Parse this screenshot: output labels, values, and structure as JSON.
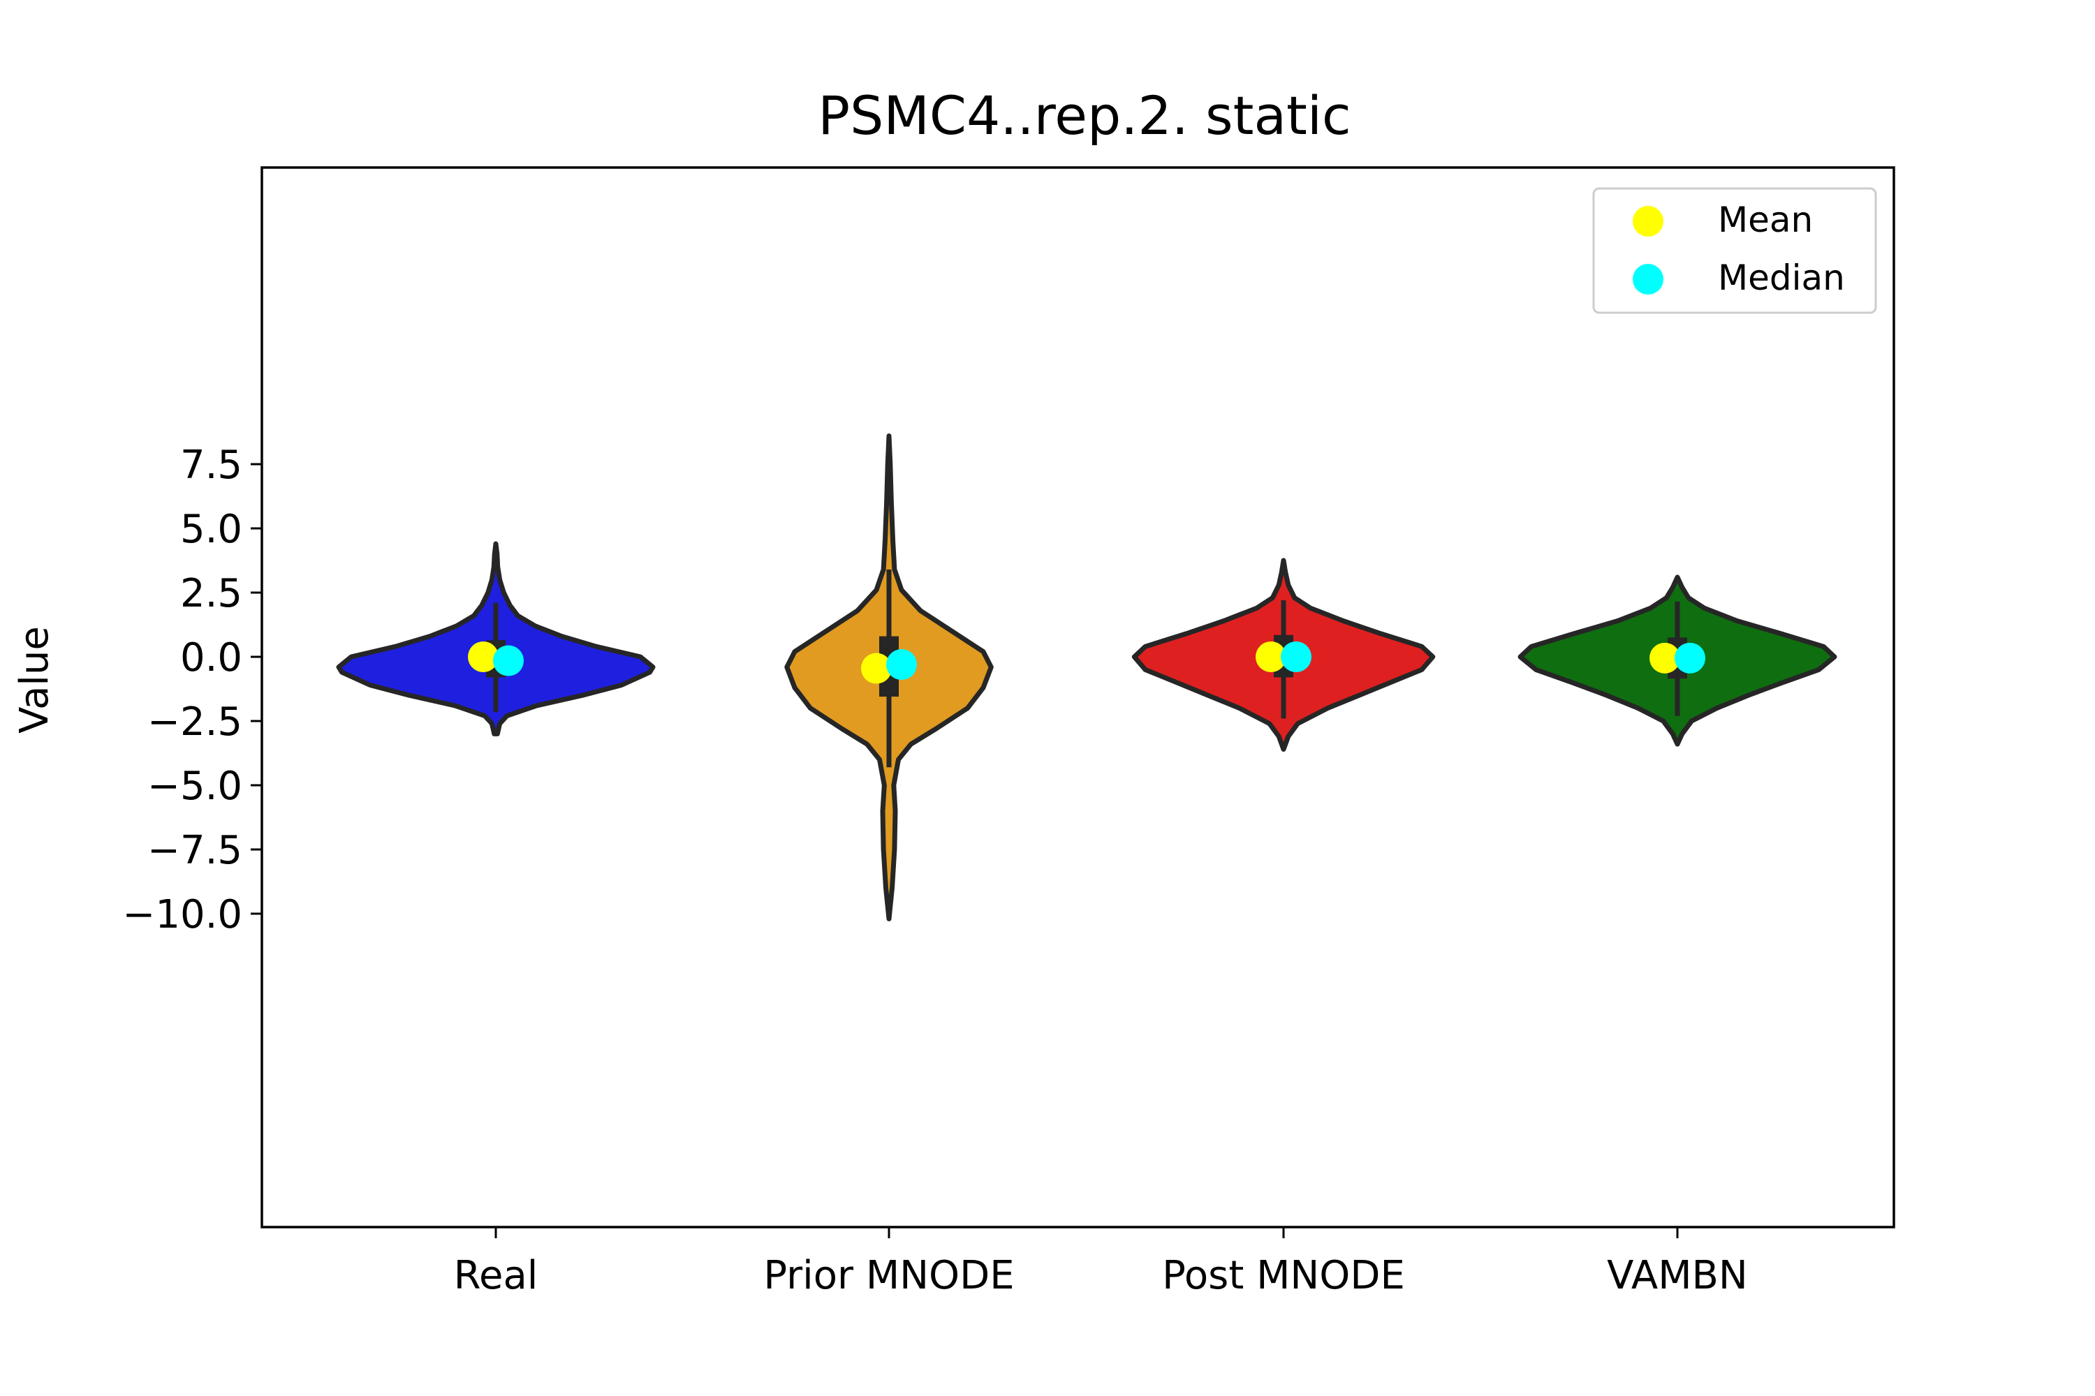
{
  "chart_data": {
    "type": "violin",
    "title": "PSMC4..rep.2. static",
    "xlabel": "",
    "ylabel": "Value",
    "ylim": [
      -11.4,
      9.2
    ],
    "yticks": [
      7.5,
      5.0,
      2.5,
      0.0,
      -2.5,
      -5.0,
      -7.5,
      -10.0
    ],
    "ytick_labels": [
      "7.5",
      "5.0",
      "2.5",
      "0.0",
      "−2.5",
      "−5.0",
      "−7.5",
      "−10.0"
    ],
    "categories": [
      "Real",
      "Prior MNODE",
      "Post MNODE",
      "VAMBN"
    ],
    "colors": {
      "Real": "#1f1fe0",
      "Prior MNODE": "#e09b20",
      "Post MNODE": "#df2020",
      "VAMBN": "#0f6e0f",
      "mean_marker": "#ffff00",
      "median_marker": "#00ffff",
      "outline": "#262626"
    },
    "series": [
      {
        "name": "Real",
        "min": -3.0,
        "max": 4.4,
        "q1": -0.8,
        "q3": 0.65,
        "whisker_low": -2.15,
        "whisker_high": 2.1,
        "mean": 0.0,
        "median": -0.15,
        "density": [
          [
            -3.0,
            0.01
          ],
          [
            -2.6,
            0.025
          ],
          [
            -2.3,
            0.07
          ],
          [
            -1.9,
            0.26
          ],
          [
            -1.5,
            0.55
          ],
          [
            -1.1,
            0.8
          ],
          [
            -0.6,
            0.98
          ],
          [
            -0.4,
            1.0
          ],
          [
            0.0,
            0.92
          ],
          [
            0.4,
            0.64
          ],
          [
            0.8,
            0.42
          ],
          [
            1.2,
            0.25
          ],
          [
            1.6,
            0.14
          ],
          [
            2.0,
            0.09
          ],
          [
            2.5,
            0.05
          ],
          [
            3.0,
            0.025
          ],
          [
            3.5,
            0.012
          ],
          [
            4.0,
            0.008
          ],
          [
            4.4,
            0.0
          ]
        ]
      },
      {
        "name": "Prior MNODE",
        "min": -10.2,
        "max": 8.6,
        "q1": -1.55,
        "q3": 0.8,
        "whisker_low": -4.3,
        "whisker_high": 3.4,
        "mean": -0.45,
        "median": -0.3,
        "density": [
          [
            -10.2,
            0.0
          ],
          [
            -9.0,
            0.02
          ],
          [
            -7.5,
            0.035
          ],
          [
            -6.0,
            0.04
          ],
          [
            -5.0,
            0.03
          ],
          [
            -4.0,
            0.06
          ],
          [
            -3.4,
            0.14
          ],
          [
            -2.8,
            0.3
          ],
          [
            -2.0,
            0.5
          ],
          [
            -1.2,
            0.6
          ],
          [
            -0.4,
            0.65
          ],
          [
            0.2,
            0.6
          ],
          [
            1.0,
            0.4
          ],
          [
            1.8,
            0.2
          ],
          [
            2.6,
            0.08
          ],
          [
            3.4,
            0.035
          ],
          [
            4.5,
            0.025
          ],
          [
            6.0,
            0.015
          ],
          [
            7.5,
            0.008
          ],
          [
            8.6,
            0.0
          ]
        ]
      },
      {
        "name": "Post MNODE",
        "min": -3.6,
        "max": 3.75,
        "q1": -0.8,
        "q3": 0.85,
        "whisker_low": -2.4,
        "whisker_high": 2.2,
        "mean": 0.0,
        "median": 0.0,
        "density": [
          [
            -3.6,
            0.0
          ],
          [
            -3.1,
            0.03
          ],
          [
            -2.6,
            0.09
          ],
          [
            -2.0,
            0.28
          ],
          [
            -1.5,
            0.48
          ],
          [
            -1.0,
            0.68
          ],
          [
            -0.5,
            0.88
          ],
          [
            0.0,
            0.95
          ],
          [
            0.4,
            0.88
          ],
          [
            0.9,
            0.62
          ],
          [
            1.4,
            0.38
          ],
          [
            1.9,
            0.17
          ],
          [
            2.3,
            0.07
          ],
          [
            2.8,
            0.03
          ],
          [
            3.3,
            0.012
          ],
          [
            3.75,
            0.0
          ]
        ]
      },
      {
        "name": "VAMBN",
        "min": -3.4,
        "max": 3.1,
        "q1": -0.85,
        "q3": 0.75,
        "whisker_low": -2.3,
        "whisker_high": 2.15,
        "mean": -0.05,
        "median": -0.05,
        "density": [
          [
            -3.4,
            0.0
          ],
          [
            -3.0,
            0.03
          ],
          [
            -2.5,
            0.09
          ],
          [
            -2.0,
            0.25
          ],
          [
            -1.5,
            0.45
          ],
          [
            -1.0,
            0.67
          ],
          [
            -0.5,
            0.9
          ],
          [
            0.0,
            1.0
          ],
          [
            0.4,
            0.93
          ],
          [
            0.9,
            0.66
          ],
          [
            1.4,
            0.38
          ],
          [
            1.9,
            0.17
          ],
          [
            2.3,
            0.07
          ],
          [
            2.7,
            0.03
          ],
          [
            3.1,
            0.0
          ]
        ]
      }
    ],
    "legend": {
      "position": "top-right",
      "entries": [
        {
          "label": "Mean",
          "color": "#ffff00"
        },
        {
          "label": "Median",
          "color": "#00ffff"
        }
      ]
    },
    "grid": false
  }
}
